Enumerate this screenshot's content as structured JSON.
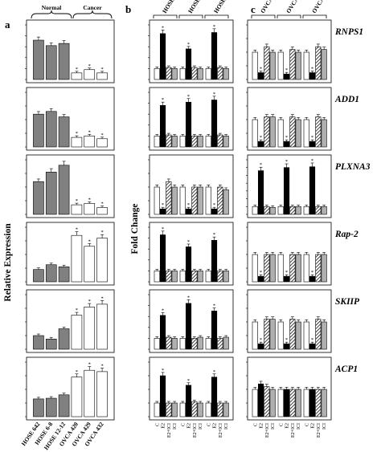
{
  "panels": {
    "a": "a",
    "b": "b",
    "c": "c"
  },
  "group_labels": {
    "normal": "Normal",
    "cancer": "Cancer"
  },
  "axis_labels": {
    "a_y": "Relative Expression",
    "b_y": "Fold Change"
  },
  "panel_a_x_labels": [
    "HOSE 642",
    "HOSE 6-8",
    "HOSE 12-12",
    "OVCA 420",
    "OVCA 429",
    "OVCA 432"
  ],
  "panel_b_headers": [
    "HOSE 642",
    "HOSE 6-8",
    "HOSE 12-12"
  ],
  "panel_c_headers": [
    "OVCA 420",
    "OVCA 429",
    "OVCA 432"
  ],
  "treatment_labels": [
    "C",
    "E2",
    "E2+ICI",
    "ICI"
  ],
  "genes": [
    "RNPS1",
    "ADD1",
    "PLXNA3",
    "Rap-2",
    "SKIIP",
    "ACP1"
  ],
  "significance_mark": "*",
  "colors": {
    "normal_bar": "#808080",
    "cancer_bar": "#ffffff",
    "control": "#ffffff",
    "e2": "#000000",
    "e2_ici": "hatched",
    "ici": "#b0b0b0",
    "border": "#000000"
  },
  "chart_data": [
    {
      "type": "bar",
      "panel": "a",
      "ylabel": "Relative Expression",
      "categories": [
        "HOSE 642",
        "HOSE 6-8",
        "HOSE 12-12",
        "OVCA 420",
        "OVCA 429",
        "OVCA 432"
      ],
      "series": [
        {
          "name": "RNPS1",
          "values": [
            1.8,
            1.55,
            1.65,
            0.3,
            0.45,
            0.3
          ]
        },
        {
          "name": "ADD1",
          "values": [
            1.2,
            1.3,
            1.1,
            0.35,
            0.4,
            0.3
          ]
        },
        {
          "name": "PLXNA3",
          "values": [
            1.2,
            1.55,
            1.8,
            0.35,
            0.4,
            0.25
          ]
        },
        {
          "name": "Rap-2",
          "values": [
            0.9,
            1.25,
            1.1,
            3.4,
            2.6,
            3.2
          ]
        },
        {
          "name": "SKIIP",
          "values": [
            1.0,
            0.75,
            1.5,
            2.5,
            3.1,
            3.3
          ]
        },
        {
          "name": "ACP1",
          "values": [
            1.3,
            1.35,
            1.6,
            2.9,
            3.4,
            3.3
          ]
        }
      ],
      "significant": [
        false,
        false,
        false,
        true,
        true,
        true
      ]
    },
    {
      "type": "bar",
      "panel": "b",
      "ylabel": "Fold Change",
      "groups": [
        "HOSE 642",
        "HOSE 6-8",
        "HOSE 12-12"
      ],
      "treatments": [
        "C",
        "E2",
        "E2+ICI",
        "ICI"
      ],
      "series": [
        {
          "name": "RNPS1",
          "values": [
            [
              1,
              4.2,
              1.1,
              1.0
            ],
            [
              1,
              2.8,
              1.1,
              1.0
            ],
            [
              1,
              4.3,
              1.1,
              1.0
            ]
          ],
          "significant": [
            [
              false,
              true,
              false,
              false
            ],
            [
              false,
              true,
              false,
              false
            ],
            [
              false,
              true,
              false,
              false
            ]
          ]
        },
        {
          "name": "ADD1",
          "values": [
            [
              1,
              3.8,
              1.1,
              1.0
            ],
            [
              1,
              4.1,
              1.0,
              1.0
            ],
            [
              1,
              4.3,
              1.1,
              1.0
            ]
          ],
          "significant": [
            [
              false,
              true,
              false,
              false
            ],
            [
              false,
              true,
              false,
              false
            ],
            [
              false,
              true,
              false,
              false
            ]
          ]
        },
        {
          "name": "PLXNA3",
          "values": [
            [
              1,
              0.2,
              1.2,
              1.0
            ],
            [
              1,
              0.2,
              1.0,
              1.0
            ],
            [
              1,
              0.2,
              1.0,
              0.9
            ]
          ],
          "significant": [
            [
              false,
              true,
              false,
              false
            ],
            [
              false,
              true,
              false,
              false
            ],
            [
              false,
              true,
              false,
              false
            ]
          ]
        },
        {
          "name": "Rap-2",
          "values": [
            [
              1,
              4.3,
              1.0,
              1.0
            ],
            [
              1,
              3.2,
              1.0,
              1.0
            ],
            [
              1,
              3.8,
              1.0,
              1.0
            ]
          ],
          "significant": [
            [
              false,
              true,
              false,
              false
            ],
            [
              false,
              true,
              false,
              false
            ],
            [
              false,
              true,
              false,
              false
            ]
          ]
        },
        {
          "name": "SKIIP",
          "values": [
            [
              1,
              3.1,
              1.1,
              1.0
            ],
            [
              1,
              4.2,
              1.0,
              1.1
            ],
            [
              1,
              3.5,
              1.0,
              1.1
            ]
          ],
          "significant": [
            [
              false,
              true,
              false,
              false
            ],
            [
              false,
              true,
              false,
              false
            ],
            [
              false,
              true,
              false,
              false
            ]
          ]
        },
        {
          "name": "ACP1",
          "values": [
            [
              1,
              3.0,
              1.0,
              1.0
            ],
            [
              1,
              2.3,
              1.1,
              1.0
            ],
            [
              1,
              2.9,
              1.0,
              1.0
            ]
          ],
          "significant": [
            [
              false,
              true,
              false,
              false
            ],
            [
              false,
              true,
              false,
              false
            ],
            [
              false,
              true,
              false,
              false
            ]
          ]
        }
      ]
    },
    {
      "type": "bar",
      "panel": "c",
      "groups": [
        "OVCA 420",
        "OVCA 429",
        "OVCA 432"
      ],
      "treatments": [
        "C",
        "E2",
        "E2+ICI",
        "ICI"
      ],
      "series": [
        {
          "name": "RNPS1",
          "values": [
            [
              1,
              0.25,
              1.2,
              1.0
            ],
            [
              1,
              0.2,
              1.1,
              1.0
            ],
            [
              1,
              0.25,
              1.2,
              1.1
            ]
          ],
          "significant": [
            [
              false,
              true,
              false,
              false
            ],
            [
              false,
              true,
              false,
              false
            ],
            [
              false,
              true,
              false,
              false
            ]
          ]
        },
        {
          "name": "ADD1",
          "values": [
            [
              1,
              0.2,
              1.1,
              1.1
            ],
            [
              1,
              0.2,
              1.1,
              1.0
            ],
            [
              1,
              0.2,
              1.1,
              1.0
            ]
          ],
          "significant": [
            [
              false,
              true,
              false,
              false
            ],
            [
              false,
              true,
              false,
              false
            ],
            [
              false,
              true,
              false,
              false
            ]
          ]
        },
        {
          "name": "PLXNA3",
          "values": [
            [
              1,
              5.6,
              1.0,
              0.9
            ],
            [
              1,
              6.0,
              1.0,
              1.0
            ],
            [
              1,
              6.1,
              1.0,
              1.0
            ]
          ],
          "significant": [
            [
              false,
              true,
              false,
              false
            ],
            [
              false,
              true,
              false,
              false
            ],
            [
              false,
              true,
              false,
              false
            ]
          ]
        },
        {
          "name": "Rap-2",
          "values": [
            [
              1,
              0.2,
              1.0,
              1.0
            ],
            [
              1,
              0.2,
              1.0,
              1.0
            ],
            [
              1,
              0.2,
              1.0,
              1.0
            ]
          ],
          "significant": [
            [
              false,
              true,
              false,
              false
            ],
            [
              false,
              true,
              false,
              false
            ],
            [
              false,
              true,
              false,
              false
            ]
          ]
        },
        {
          "name": "SKIIP",
          "values": [
            [
              1,
              0.2,
              1.1,
              1.1
            ],
            [
              1,
              0.2,
              1.1,
              1.0
            ],
            [
              1,
              0.2,
              1.1,
              1.0
            ]
          ],
          "significant": [
            [
              false,
              true,
              false,
              false
            ],
            [
              false,
              true,
              false,
              false
            ],
            [
              false,
              true,
              false,
              false
            ]
          ]
        },
        {
          "name": "ACP1",
          "values": [
            [
              1,
              1.2,
              1.1,
              1.0
            ],
            [
              1,
              1.0,
              1.0,
              1.0
            ],
            [
              1,
              1.0,
              1.0,
              1.0
            ]
          ],
          "significant": [
            [
              false,
              false,
              false,
              false
            ],
            [
              false,
              false,
              false,
              false
            ],
            [
              false,
              false,
              false,
              false
            ]
          ]
        }
      ]
    }
  ]
}
